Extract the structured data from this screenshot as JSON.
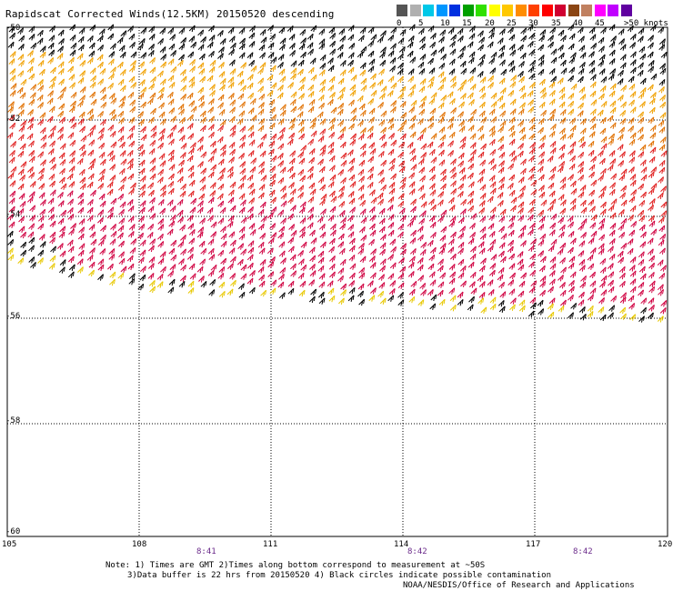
{
  "title": "Rapidscat Corrected Winds(12.5KM) 20150520 descending",
  "colorbar": {
    "colors": [
      "#555555",
      "#b0b0b0",
      "#00c8e8",
      "#0096ff",
      "#0030e0",
      "#00a000",
      "#30e000",
      "#ffff00",
      "#ffc800",
      "#ff8c00",
      "#ff4000",
      "#ff0000",
      "#d00030",
      "#8b4513",
      "#c08060",
      "#ff00ff",
      "#c000ff",
      "#6000a0"
    ],
    "labels": [
      "0",
      "5",
      "10",
      "15",
      "20",
      "25",
      "30",
      "35",
      "40",
      "45",
      ">50 knots"
    ]
  },
  "lat_labels": [
    "-50",
    "-52",
    "-54",
    "-56",
    "-58",
    "-60"
  ],
  "lon_labels": [
    "105",
    "108",
    "111",
    "114",
    "117",
    "120"
  ],
  "time_labels": [
    "8:41",
    "8:42",
    "8:42"
  ],
  "notes": [
    "Note: 1) Times are GMT 2)Times along bottom correspond to measurement at ~50S",
    "3)Data buffer is 22 hrs from 20150520 4) Black circles indicate possible contamination"
  ],
  "credit": "NOAA/NESDIS/Office of Research and Applications",
  "map": {
    "lat_range": [
      -60,
      -50
    ],
    "lon_range": [
      105,
      120
    ],
    "barb_colors": {
      "calm": "#000000",
      "light": "#00b000",
      "yellow": "#e8c800",
      "amber": "#f0a000",
      "orange": "#e07000",
      "red": "#e02020",
      "crimson": "#d00040"
    }
  }
}
